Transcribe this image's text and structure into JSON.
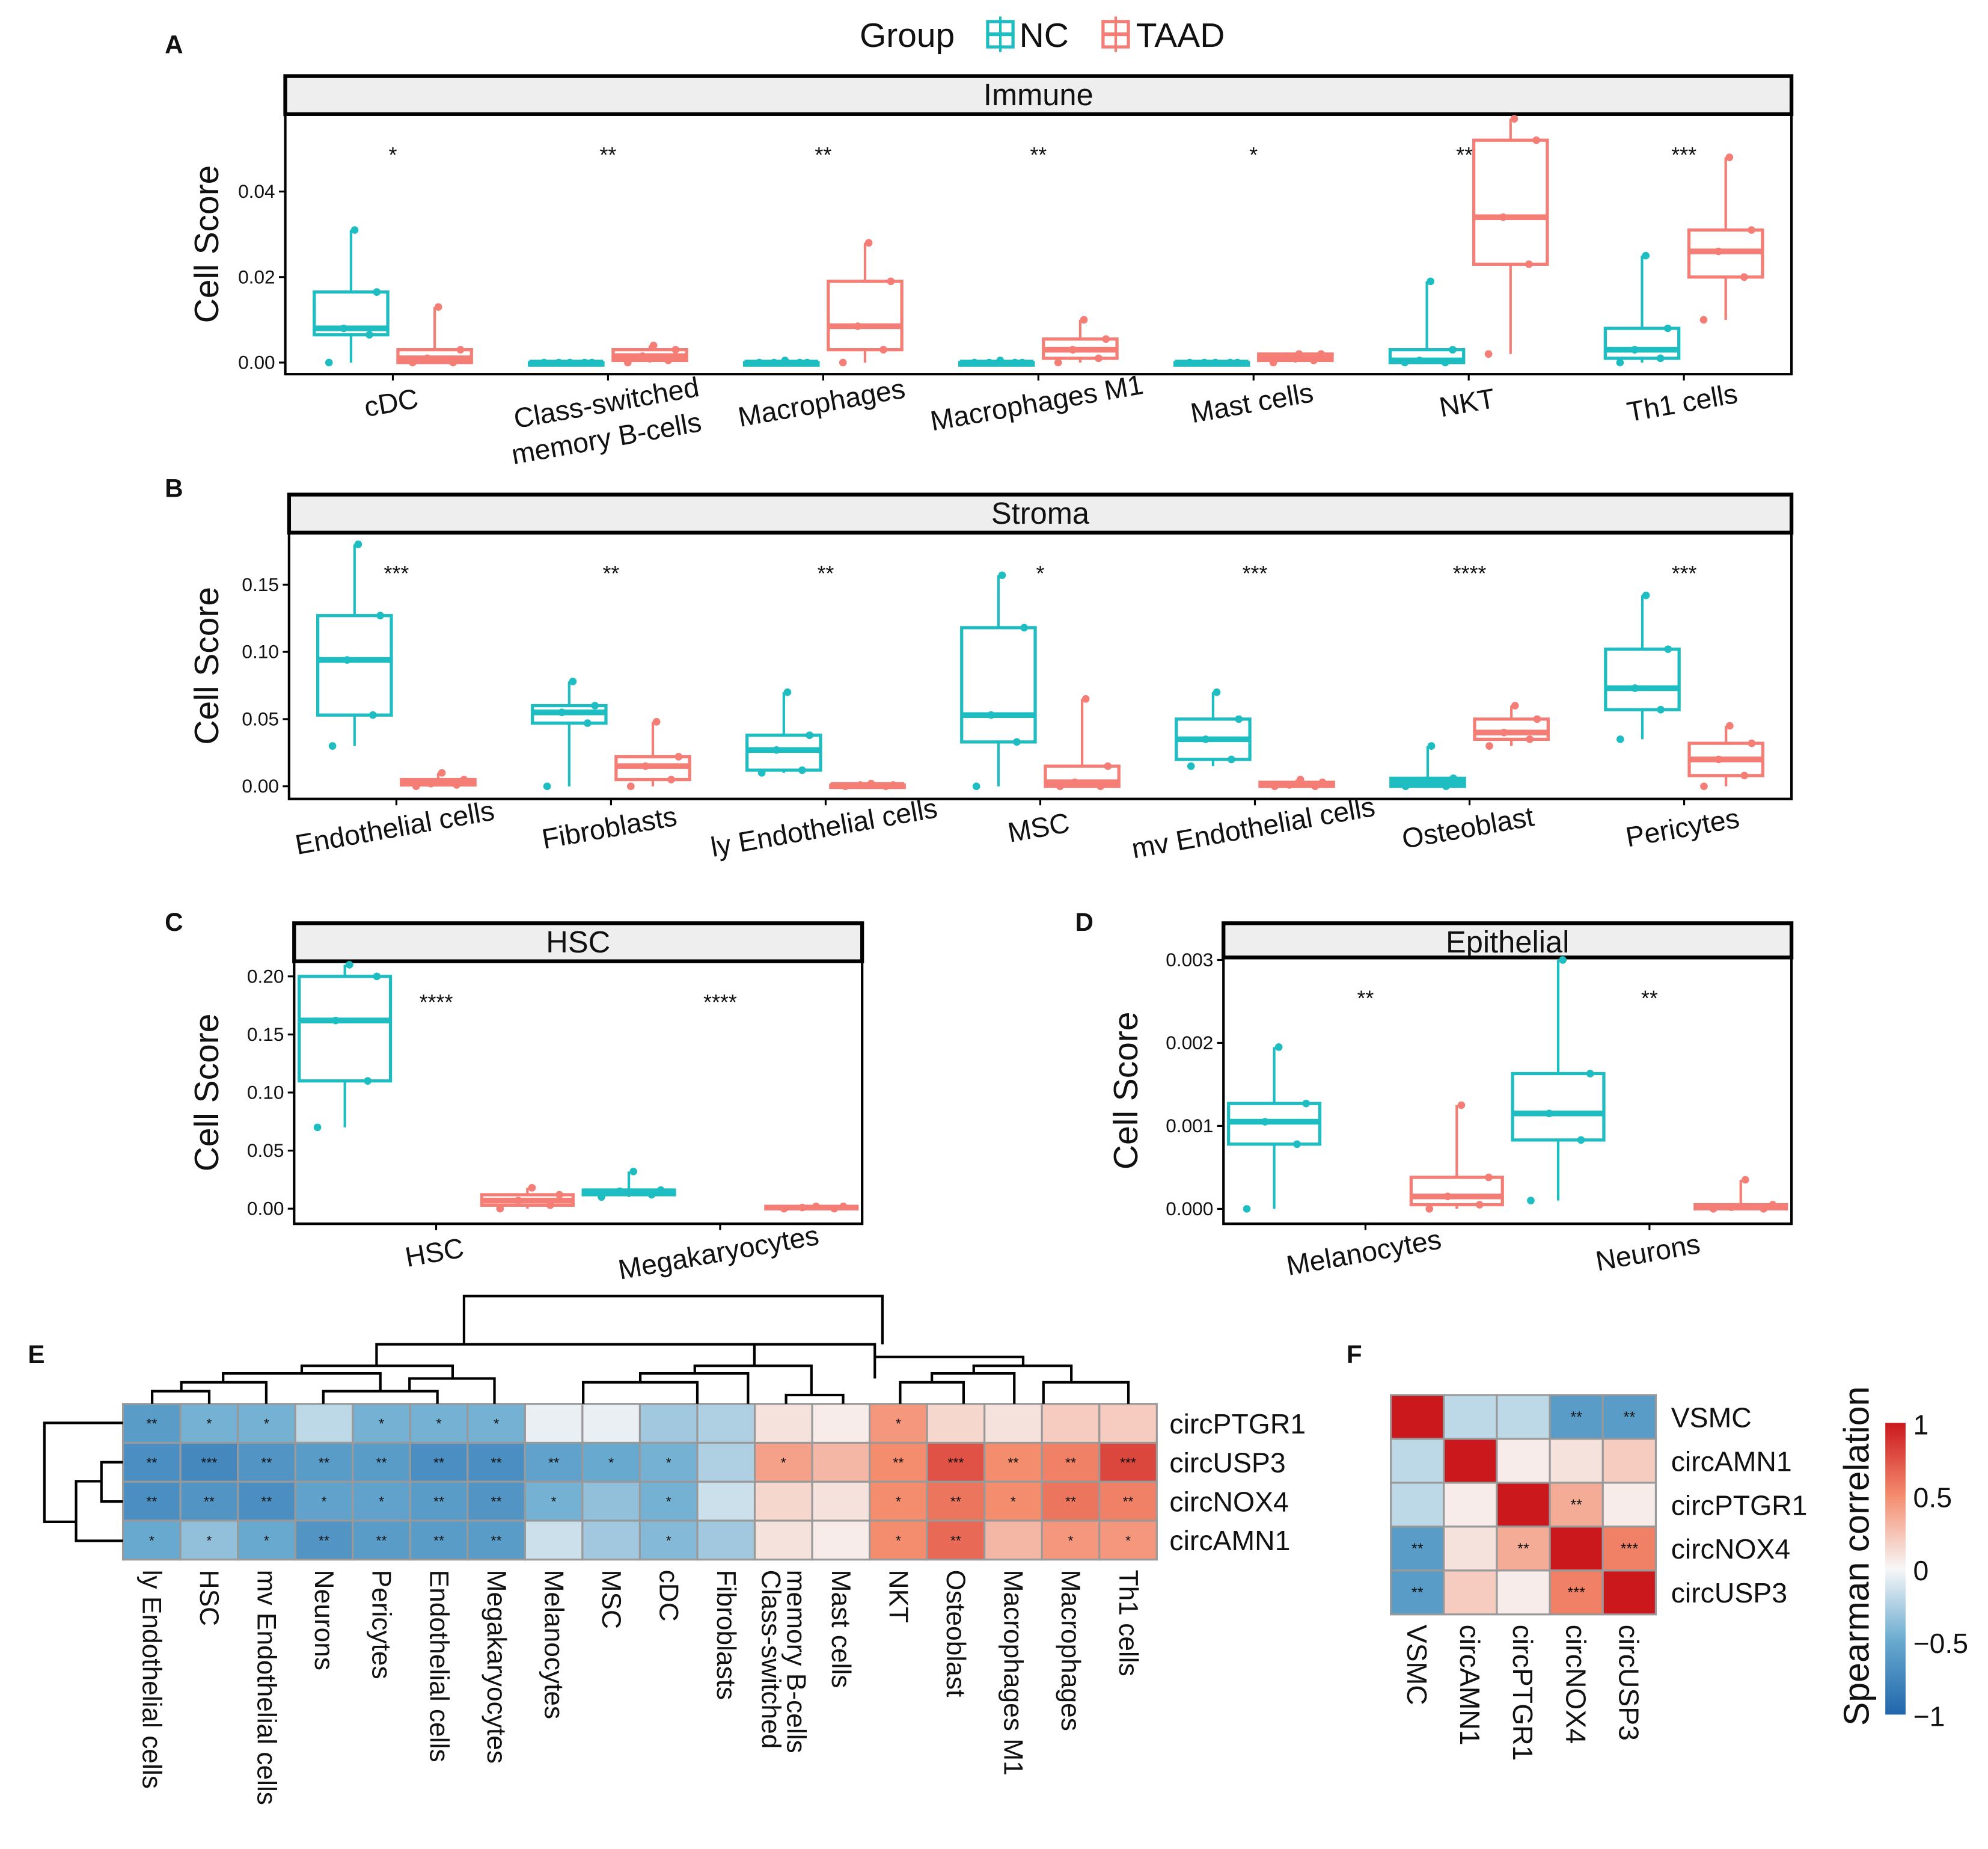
{
  "legend": {
    "title": "Group",
    "items": [
      {
        "label": "NC",
        "color": "#1EBDC2"
      },
      {
        "label": "TAAD",
        "color": "#F47E76"
      }
    ]
  },
  "panel_letters": [
    "A",
    "B",
    "C",
    "D",
    "E",
    "F"
  ],
  "chart_data": [
    {
      "type": "box",
      "panel": "A",
      "strip_title": "Immune",
      "ylabel": "Cell Score",
      "ylim": [
        -0.0027,
        0.0581
      ],
      "yticks": [
        0,
        0.02,
        0.04
      ],
      "ytick_labels": [
        "0.00",
        "0.02",
        "0.04"
      ],
      "categories": [
        [
          "cDC"
        ],
        [
          "Class-switched",
          "memory B-cells"
        ],
        [
          "Macrophages"
        ],
        [
          "Macrophages M1"
        ],
        [
          "Mast cells"
        ],
        [
          "NKT"
        ],
        [
          "Th1 cells"
        ]
      ],
      "significance": [
        "*",
        "**",
        "**",
        "**",
        "*",
        "***",
        "***"
      ],
      "series": [
        {
          "name": "NC",
          "stats": [
            [
              0,
              0.0065,
              0.008,
              0.0165,
              0.031
            ],
            [
              0,
              0,
              0,
              0,
              0
            ],
            [
              0,
              0,
              0,
              0,
              0.0005
            ],
            [
              0,
              0,
              0,
              0,
              0.0005
            ],
            [
              0,
              0,
              0,
              0,
              0
            ],
            [
              0,
              0,
              0.0005,
              0.003,
              0.019
            ],
            [
              0,
              0.001,
              0.003,
              0.008,
              0.025
            ]
          ]
        },
        {
          "name": "TAAD",
          "stats": [
            [
              0,
              0,
              0.001,
              0.003,
              0.013
            ],
            [
              0,
              0.0005,
              0.0015,
              0.003,
              0.004
            ],
            [
              0,
              0.003,
              0.0085,
              0.019,
              0.028
            ],
            [
              0,
              0.001,
              0.003,
              0.0055,
              0.01
            ],
            [
              0,
              0.0005,
              0.001,
              0.002,
              0.002
            ],
            [
              0.002,
              0.023,
              0.034,
              0.052,
              0.057
            ],
            [
              0.01,
              0.02,
              0.026,
              0.031,
              0.048
            ]
          ]
        }
      ]
    },
    {
      "type": "box",
      "panel": "B",
      "strip_title": "Stroma",
      "ylabel": "Cell Score",
      "ylim": [
        -0.0094,
        0.1887
      ],
      "yticks": [
        0,
        0.05,
        0.1,
        0.15
      ],
      "ytick_labels": [
        "0.00",
        "0.05",
        "0.10",
        "0.15"
      ],
      "categories": [
        [
          "Endothelial cells"
        ],
        [
          "Fibroblasts"
        ],
        [
          "ly Endothelial cells"
        ],
        [
          "MSC"
        ],
        [
          "mv Endothelial cells"
        ],
        [
          "Osteoblast"
        ],
        [
          "Pericytes"
        ]
      ],
      "significance": [
        "***",
        "**",
        "**",
        "*",
        "***",
        "****",
        "***"
      ],
      "series": [
        {
          "name": "NC",
          "stats": [
            [
              0.03,
              0.053,
              0.094,
              0.127,
              0.18
            ],
            [
              0,
              0.047,
              0.055,
              0.06,
              0.078
            ],
            [
              0.01,
              0.012,
              0.027,
              0.038,
              0.07
            ],
            [
              0,
              0.033,
              0.053,
              0.118,
              0.157
            ],
            [
              0.015,
              0.02,
              0.035,
              0.05,
              0.07
            ],
            [
              0,
              0,
              0.003,
              0.006,
              0.03
            ],
            [
              0.035,
              0.057,
              0.073,
              0.102,
              0.142
            ]
          ]
        },
        {
          "name": "TAAD",
          "stats": [
            [
              0,
              0.001,
              0.002,
              0.005,
              0.01
            ],
            [
              0,
              0.005,
              0.015,
              0.022,
              0.048
            ],
            [
              0,
              0,
              0.001,
              0.001,
              0.002
            ],
            [
              0,
              0,
              0.003,
              0.015,
              0.065
            ],
            [
              0,
              0,
              0.001,
              0.003,
              0.005
            ],
            [
              0.03,
              0.035,
              0.04,
              0.05,
              0.06
            ],
            [
              0,
              0.008,
              0.02,
              0.032,
              0.045
            ]
          ]
        }
      ]
    },
    {
      "type": "box",
      "panel": "C",
      "strip_title": "HSC",
      "ylabel": "Cell Score",
      "ylim": [
        -0.013,
        0.213
      ],
      "yticks": [
        0,
        0.05,
        0.1,
        0.15,
        0.2
      ],
      "ytick_labels": [
        "0.00",
        "0.05",
        "0.10",
        "0.15",
        "0.20"
      ],
      "categories": [
        [
          "HSC"
        ],
        [
          "Megakaryocytes"
        ]
      ],
      "significance": [
        "****",
        "****"
      ],
      "series": [
        {
          "name": "NC",
          "stats": [
            [
              0.07,
              0.11,
              0.162,
              0.2,
              0.21
            ],
            [
              0.01,
              0.012,
              0.015,
              0.016,
              0.032
            ]
          ]
        },
        {
          "name": "TAAD",
          "stats": [
            [
              0,
              0.003,
              0.007,
              0.012,
              0.018
            ],
            [
              0,
              0,
              0.001,
              0.002,
              0.002
            ]
          ]
        }
      ]
    },
    {
      "type": "box",
      "panel": "D",
      "strip_title": "Epithelial",
      "ylabel": "Cell Score",
      "ylim": [
        -0.00018,
        0.00303
      ],
      "yticks": [
        0,
        0.001,
        0.002,
        0.003
      ],
      "ytick_labels": [
        "0.000",
        "0.001",
        "0.002",
        "0.003"
      ],
      "categories": [
        [
          "Melanocytes"
        ],
        [
          "Neurons"
        ]
      ],
      "significance": [
        "**",
        "**"
      ],
      "series": [
        {
          "name": "NC",
          "stats": [
            [
              0,
              0.00078,
              0.00105,
              0.00127,
              0.00195
            ],
            [
              0.0001,
              0.00083,
              0.00115,
              0.00163,
              0.003
            ]
          ]
        },
        {
          "name": "TAAD",
          "stats": [
            [
              0,
              5e-05,
              0.00015,
              0.00038,
              0.00125
            ],
            [
              0,
              0,
              2e-05,
              5e-05,
              0.00035
            ]
          ]
        }
      ]
    },
    {
      "type": "heatmap",
      "panel": "E",
      "rows": [
        "circPTGR1",
        "circUSP3",
        "circNOX4",
        "circAMN1"
      ],
      "columns": [
        [
          "ly Endothelial cells"
        ],
        [
          "HSC"
        ],
        [
          "mv Endothelial cells"
        ],
        [
          "Neurons"
        ],
        [
          "Pericytes"
        ],
        [
          "Endothelial cells"
        ],
        [
          "Megakaryocytes"
        ],
        [
          "Melanocytes"
        ],
        [
          "MSC"
        ],
        [
          "cDC"
        ],
        [
          "Fibroblasts"
        ],
        [
          "Class-switched",
          "memory B-cells"
        ],
        [
          "Mast cells"
        ],
        [
          "NKT"
        ],
        [
          "Osteoblast"
        ],
        [
          "Macrophages M1"
        ],
        [
          "Macrophages"
        ],
        [
          "Th1 cells"
        ]
      ],
      "values": [
        [
          -0.6,
          -0.45,
          -0.45,
          -0.2,
          -0.45,
          -0.45,
          -0.45,
          -0.05,
          -0.05,
          -0.3,
          -0.25,
          0.1,
          0.05,
          0.45,
          0.15,
          0.1,
          0.2,
          0.2
        ],
        [
          -0.7,
          -0.75,
          -0.65,
          -0.6,
          -0.6,
          -0.7,
          -0.7,
          -0.55,
          -0.5,
          -0.45,
          -0.25,
          0.4,
          0.3,
          0.5,
          0.75,
          0.5,
          0.55,
          0.8
        ],
        [
          -0.7,
          -0.65,
          -0.7,
          -0.55,
          -0.55,
          -0.6,
          -0.65,
          -0.45,
          -0.35,
          -0.45,
          -0.15,
          0.15,
          0.1,
          0.5,
          0.6,
          0.5,
          0.6,
          0.55
        ],
        [
          -0.5,
          -0.35,
          -0.5,
          -0.65,
          -0.6,
          -0.6,
          -0.6,
          -0.15,
          -0.3,
          -0.4,
          -0.3,
          0.1,
          0.05,
          0.5,
          0.65,
          0.3,
          0.45,
          0.45
        ]
      ],
      "stars": [
        [
          "**",
          "*",
          "*",
          "",
          "*",
          "*",
          "*",
          "",
          "",
          "",
          "",
          "",
          "",
          "*",
          "",
          "",
          "",
          ""
        ],
        [
          "**",
          "***",
          "**",
          "**",
          "**",
          "**",
          "**",
          "**",
          "*",
          "*",
          "",
          "*",
          "",
          "**",
          "***",
          "**",
          "**",
          "***"
        ],
        [
          "**",
          "**",
          "**",
          "*",
          "*",
          "**",
          "**",
          "*",
          "",
          "*",
          "",
          "",
          "",
          "*",
          "**",
          "*",
          "**",
          "**"
        ],
        [
          "*",
          "*",
          "*",
          "**",
          "**",
          "**",
          "**",
          "",
          "",
          "*",
          "",
          "",
          "",
          "*",
          "**",
          "",
          "*",
          "*"
        ]
      ]
    },
    {
      "type": "heatmap",
      "panel": "F",
      "rows": [
        "VSMC",
        "circAMN1",
        "circPTGR1",
        "circNOX4",
        "circUSP3"
      ],
      "columns": [
        [
          "VSMC"
        ],
        [
          "circAMN1"
        ],
        [
          "circPTGR1"
        ],
        [
          "circNOX4"
        ],
        [
          "circUSP3"
        ]
      ],
      "values": [
        [
          1,
          -0.2,
          -0.2,
          -0.6,
          -0.6
        ],
        [
          -0.2,
          1,
          0.05,
          0.1,
          0.2
        ],
        [
          -0.2,
          0.05,
          1,
          0.35,
          0.05
        ],
        [
          -0.6,
          0.1,
          0.35,
          1,
          0.55
        ],
        [
          -0.6,
          0.2,
          0.05,
          0.55,
          1
        ]
      ],
      "stars": [
        [
          "",
          "",
          "",
          "**",
          "**"
        ],
        [
          "",
          "",
          "",
          "",
          ""
        ],
        [
          "",
          "",
          "",
          "**",
          ""
        ],
        [
          "**",
          "",
          "**",
          "",
          "***"
        ],
        [
          "**",
          "",
          "",
          "***",
          ""
        ]
      ],
      "colorbar": {
        "title": "Spearman correlation",
        "range": [
          -1,
          1
        ],
        "ticks": [
          1,
          0.5,
          0,
          -0.5,
          -1
        ],
        "tick_labels": [
          "1",
          "0.5",
          "0",
          "−0.5",
          "−1"
        ]
      }
    }
  ]
}
